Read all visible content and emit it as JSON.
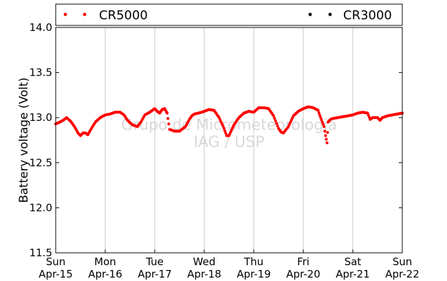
{
  "chart_data": {
    "type": "scatter",
    "ylabel": "Battery voltage (Volt)",
    "ylim": [
      11.5,
      14.0
    ],
    "yticks": [
      11.5,
      12.0,
      12.5,
      13.0,
      13.5,
      14.0
    ],
    "ytick_labels": [
      "11.5",
      "12.0",
      "12.5",
      "13.0",
      "13.5",
      "14.0"
    ],
    "xlim": [
      0,
      7
    ],
    "xticks": [
      0,
      1,
      2,
      3,
      4,
      5,
      6,
      7
    ],
    "xtick_labels": [
      [
        "Sun",
        "Apr-15"
      ],
      [
        "Mon",
        "Apr-16"
      ],
      [
        "Tue",
        "Apr-17"
      ],
      [
        "Wed",
        "Apr-18"
      ],
      [
        "Thu",
        "Apr-19"
      ],
      [
        "Fri",
        "Apr-20"
      ],
      [
        "Sat",
        "Apr-21"
      ],
      [
        "Sun",
        "Apr-22"
      ]
    ],
    "grid": "vertical",
    "legend_placement": "top",
    "watermark": [
      "Grupo de Micrometeorologia",
      "IAG / USP"
    ],
    "series": [
      {
        "name": "CR5000",
        "color": "#ff0000",
        "x": [
          0,
          0.08,
          0.15,
          0.22,
          0.3,
          0.38,
          0.45,
          0.5,
          0.55,
          0.6,
          0.65,
          0.7,
          0.8,
          0.9,
          1.0,
          1.1,
          1.2,
          1.3,
          1.38,
          1.45,
          1.55,
          1.65,
          1.72,
          1.8,
          1.9,
          1.95,
          2.0,
          2.05,
          2.1,
          2.15,
          2.2,
          2.25,
          2.3,
          2.4,
          2.5,
          2.62,
          2.7,
          2.75,
          2.8,
          2.88,
          2.95,
          3.0,
          3.1,
          3.2,
          3.3,
          3.4,
          3.45,
          3.5,
          3.55,
          3.6,
          3.7,
          3.8,
          3.9,
          4.0,
          4.1,
          4.2,
          4.3,
          4.4,
          4.5,
          4.55,
          4.6,
          4.7,
          4.8,
          4.9,
          5.0,
          5.1,
          5.2,
          5.3,
          5.35,
          5.42,
          5.45,
          5.48,
          5.5,
          5.55,
          5.6,
          5.7,
          5.8,
          5.9,
          6.0,
          6.1,
          6.2,
          6.3,
          6.35,
          6.4,
          6.5,
          6.55,
          6.6,
          6.7,
          6.8,
          6.9,
          7.0
        ],
        "y": [
          12.93,
          12.95,
          12.97,
          13.0,
          12.96,
          12.9,
          12.83,
          12.8,
          12.83,
          12.83,
          12.81,
          12.86,
          12.95,
          13.0,
          13.03,
          13.04,
          13.06,
          13.06,
          13.03,
          12.97,
          12.92,
          12.9,
          12.95,
          13.03,
          13.06,
          13.08,
          13.1,
          13.07,
          13.05,
          13.09,
          13.1,
          13.05,
          12.87,
          12.85,
          12.85,
          12.9,
          12.98,
          13.02,
          13.04,
          13.05,
          13.06,
          13.07,
          13.09,
          13.08,
          13.0,
          12.88,
          12.8,
          12.8,
          12.86,
          12.92,
          13.0,
          13.05,
          13.07,
          13.06,
          13.11,
          13.11,
          13.1,
          13.02,
          12.88,
          12.84,
          12.83,
          12.9,
          13.02,
          13.07,
          13.1,
          13.12,
          13.11,
          13.08,
          13.0,
          12.9,
          12.8,
          12.72,
          12.95,
          12.98,
          12.99,
          13.0,
          13.01,
          13.02,
          13.03,
          13.05,
          13.06,
          13.05,
          12.98,
          13.0,
          13.0,
          12.97,
          13.0,
          13.02,
          13.03,
          13.04,
          13.05
        ]
      },
      {
        "name": "CR3000",
        "color": "#000000",
        "x": [],
        "y": []
      }
    ]
  }
}
